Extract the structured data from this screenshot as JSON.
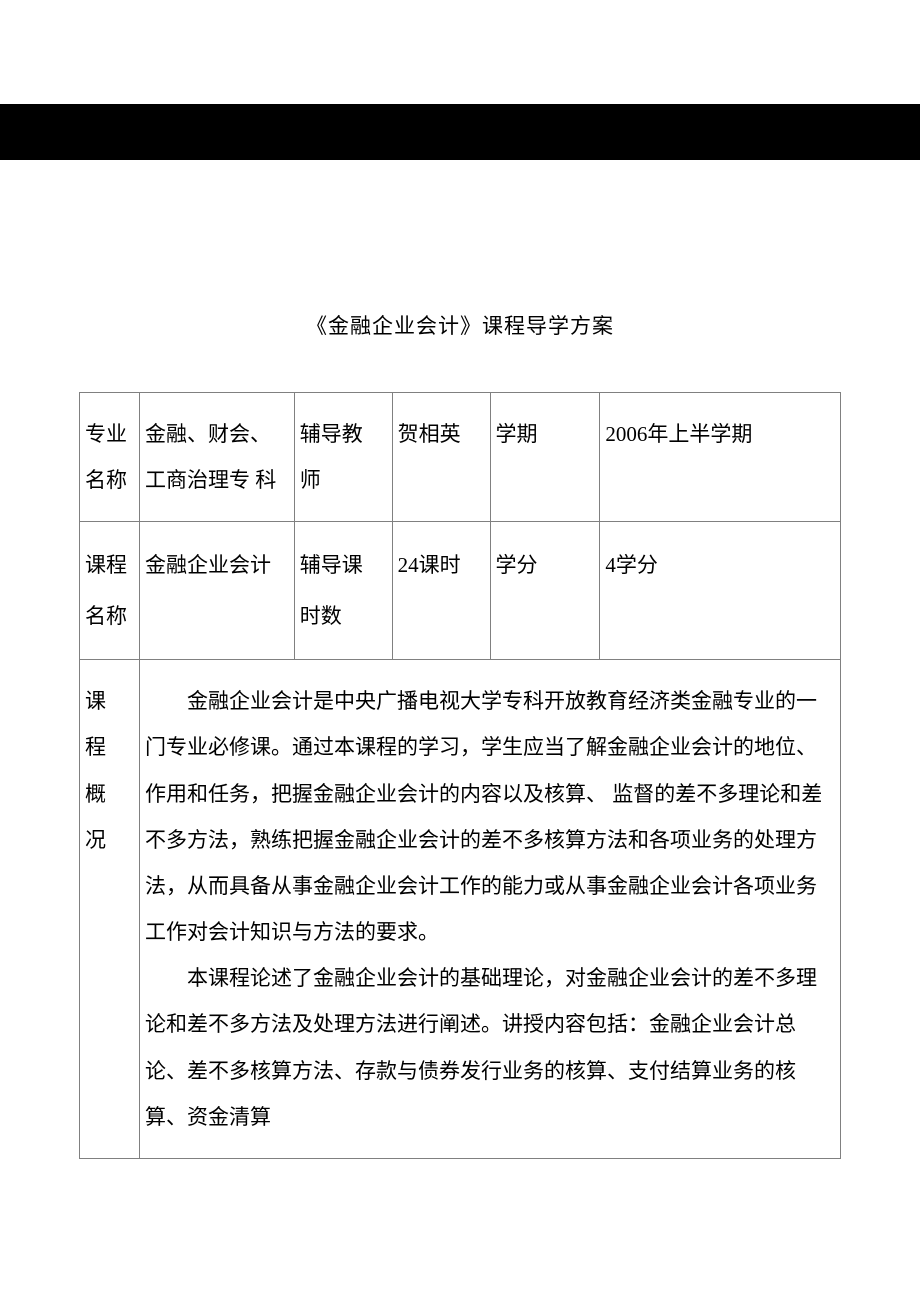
{
  "page": {
    "title": "《金融企业会计》课程导学方案",
    "background_color": "#ffffff",
    "banner_color": "#000000",
    "border_color": "#808080",
    "text_color": "#000000",
    "font_size": 21
  },
  "table": {
    "row1": {
      "label1": "专业名称",
      "value1": "金融、财会、工商治理专 科",
      "label2": "辅导教师",
      "value2": "贺相英",
      "label3": "学期",
      "value3": "2006年上半学期"
    },
    "row2": {
      "label1": "课程名称",
      "value1": "金融企业会计",
      "label2": "辅导课时数",
      "value2": "24课时",
      "label3": "学分",
      "value3": "4学分"
    },
    "row3": {
      "label": "课 程 概 况",
      "paragraph1": "金融企业会计是中央广播电视大学专科开放教育经济类金融专业的一门专业必修课。通过本课程的学习，学生应当了解金融企业会计的地位、作用和任务，把握金融企业会计的内容以及核算、 监督的差不多理论和差不多方法，熟练把握金融企业会计的差不多核算方法和各项业务的处理方法，从而具备从事金融企业会计工作的能力或从事金融企业会计各项业务工作对会计知识与方法的要求。",
      "paragraph2": "本课程论述了金融企业会计的基础理论，对金融企业会计的差不多理论和差不多方法及处理方法进行阐述。讲授内容包括：金融企业会计总论、差不多核算方法、存款与债券发行业务的核算、支付结算业务的核算、资金清算"
    }
  }
}
